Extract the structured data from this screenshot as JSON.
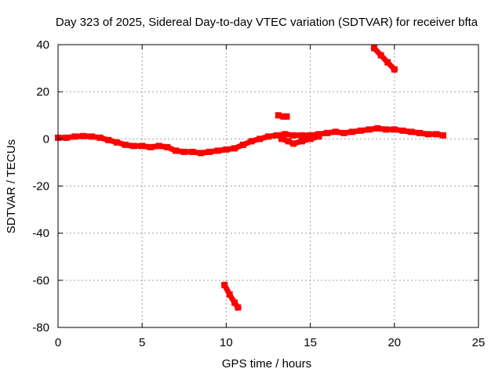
{
  "chart_data": {
    "type": "scatter",
    "title": "Day 323 of 2025, Sidereal Day-to-day VTEC variation (SDTVAR) for receiver bfta",
    "xlabel": "GPS time / hours",
    "ylabel": "SDTVAR / TECUs",
    "xlim": [
      0,
      25
    ],
    "ylim": [
      -80,
      40
    ],
    "x_ticks": [
      0,
      5,
      10,
      15,
      20,
      25
    ],
    "y_ticks": [
      -80,
      -60,
      -40,
      -20,
      0,
      20,
      40
    ],
    "grid": true,
    "series": [
      {
        "name": "main trace",
        "color": "#ff0000",
        "points": [
          [
            0.0,
            0.5
          ],
          [
            0.5,
            0.5
          ],
          [
            1.0,
            1.0
          ],
          [
            1.5,
            1.2
          ],
          [
            2.0,
            1.0
          ],
          [
            2.5,
            0.5
          ],
          [
            3.0,
            -0.5
          ],
          [
            3.5,
            -1.5
          ],
          [
            4.0,
            -2.5
          ],
          [
            4.5,
            -3.0
          ],
          [
            5.0,
            -3.0
          ],
          [
            5.5,
            -3.5
          ],
          [
            6.0,
            -3.0
          ],
          [
            6.5,
            -3.5
          ],
          [
            7.0,
            -5.0
          ],
          [
            7.5,
            -5.5
          ],
          [
            8.0,
            -5.5
          ],
          [
            8.5,
            -6.0
          ],
          [
            9.0,
            -5.5
          ],
          [
            9.5,
            -5.0
          ],
          [
            10.0,
            -4.5
          ],
          [
            10.5,
            -4.0
          ],
          [
            11.0,
            -2.5
          ],
          [
            11.5,
            -1.0
          ],
          [
            12.0,
            0.0
          ],
          [
            12.5,
            1.0
          ],
          [
            13.0,
            1.5
          ],
          [
            13.5,
            2.0
          ],
          [
            14.0,
            1.5
          ],
          [
            14.5,
            1.5
          ],
          [
            15.0,
            1.5
          ],
          [
            15.5,
            2.0
          ],
          [
            16.0,
            2.5
          ],
          [
            16.5,
            3.0
          ],
          [
            17.0,
            2.5
          ],
          [
            17.5,
            3.0
          ],
          [
            18.0,
            3.5
          ],
          [
            18.5,
            4.0
          ],
          [
            19.0,
            4.5
          ],
          [
            19.5,
            4.0
          ],
          [
            20.0,
            4.0
          ],
          [
            20.5,
            3.5
          ],
          [
            21.0,
            3.0
          ],
          [
            21.5,
            2.5
          ],
          [
            22.0,
            2.0
          ],
          [
            22.5,
            2.0
          ],
          [
            22.9,
            1.5
          ]
        ]
      },
      {
        "name": "lower branch",
        "color": "#ff0000",
        "points": [
          [
            13.3,
            0.0
          ],
          [
            13.7,
            -1.0
          ],
          [
            14.0,
            -2.0
          ],
          [
            14.5,
            -1.0
          ],
          [
            15.0,
            0.0
          ],
          [
            15.5,
            1.0
          ]
        ]
      },
      {
        "name": "short arc 1",
        "color": "#ff0000",
        "points": [
          [
            18.8,
            38.5
          ],
          [
            19.2,
            35.5
          ],
          [
            19.6,
            32.5
          ],
          [
            20.0,
            29.5
          ]
        ]
      },
      {
        "name": "short arc 2",
        "color": "#ff0000",
        "points": [
          [
            9.9,
            -62.0
          ],
          [
            10.2,
            -66.0
          ],
          [
            10.5,
            -69.5
          ],
          [
            10.7,
            -71.5
          ]
        ]
      },
      {
        "name": "outlier segment",
        "color": "#ff0000",
        "points": [
          [
            13.1,
            10.0
          ],
          [
            13.4,
            9.5
          ],
          [
            13.6,
            9.5
          ]
        ]
      }
    ]
  }
}
